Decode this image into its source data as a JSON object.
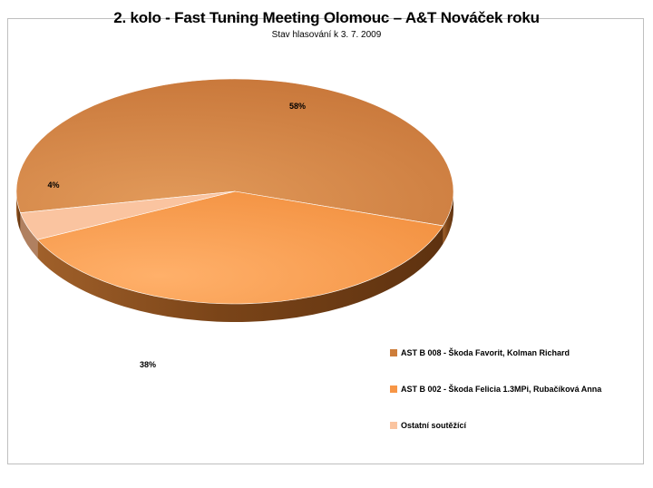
{
  "chart_data": {
    "type": "pie",
    "title": "2. kolo - Fast Tuning Meeting Olomouc – A&T Nováček roku",
    "subtitle": "Stav hlasování k 3. 7. 2009",
    "legend_position": "bottom-right",
    "slices": [
      {
        "label": "AST B 008 - Škoda Favorit, Kolman Richard",
        "value": 58,
        "display": "58%",
        "color": "#cd7d3a",
        "side_color": "#8a4f22"
      },
      {
        "label": "AST B 002 - Škoda Felicia 1.3MPi, Rubačíková Anna",
        "value": 38,
        "display": "38%",
        "color": "#f79646",
        "side_color": "#9c5a22"
      },
      {
        "label": "Ostatní soutěžící",
        "value": 4,
        "display": "4%",
        "color": "#fac4a0",
        "side_color": "#b08060"
      }
    ]
  }
}
